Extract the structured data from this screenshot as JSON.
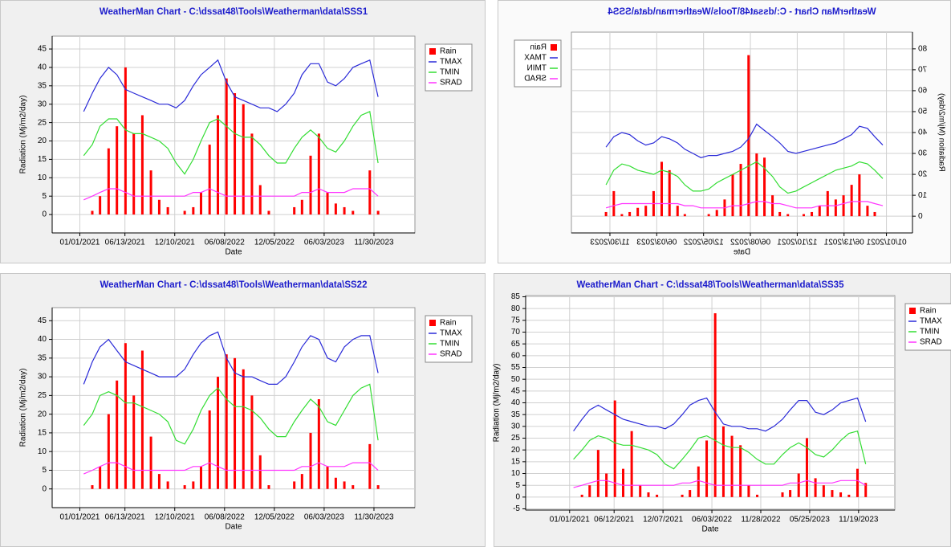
{
  "chart_data": [
    {
      "type": "line",
      "title": "WeatherMan  Chart  -  C:\\dssat48\\Tools\\Weatherman\\data\\SSS1",
      "x_label": "Date",
      "y_label": "Radiation (Mj/m2/day)",
      "xlim": [
        "09/23/2020",
        "04/26/2024"
      ],
      "xticks": [
        "01/01/2021",
        "06/13/2021",
        "12/10/2021",
        "06/08/2022",
        "12/05/2022",
        "06/03/2023",
        "11/30/2023"
      ],
      "ylim": [
        -5,
        48.5
      ],
      "yticks": [
        0,
        5,
        10,
        15,
        20,
        25,
        30,
        35,
        40,
        45
      ],
      "grid": true,
      "legend": "right",
      "x": [
        "01/15/2021",
        "02/15/2021",
        "03/15/2021",
        "04/15/2021",
        "05/15/2021",
        "06/15/2021",
        "07/15/2021",
        "08/15/2021",
        "09/15/2021",
        "10/15/2021",
        "11/15/2021",
        "12/15/2021",
        "01/15/2022",
        "02/15/2022",
        "03/15/2022",
        "04/15/2022",
        "05/15/2022",
        "06/15/2022",
        "07/15/2022",
        "08/15/2022",
        "09/15/2022",
        "10/15/2022",
        "11/15/2022",
        "12/15/2022",
        "01/15/2023",
        "02/15/2023",
        "03/15/2023",
        "04/15/2023",
        "05/15/2023",
        "06/15/2023",
        "07/15/2023",
        "08/15/2023",
        "09/15/2023",
        "10/15/2023",
        "11/15/2023",
        "12/15/2023"
      ],
      "series": [
        {
          "name": "Rain",
          "color": "#ff0000",
          "type": "bar",
          "values": [
            0,
            1,
            5,
            18,
            24,
            40,
            22,
            27,
            12,
            4,
            2,
            0,
            1,
            2,
            6,
            19,
            27,
            37,
            33,
            30,
            22,
            8,
            1,
            0,
            0,
            2,
            4,
            16,
            22,
            6,
            3,
            2,
            1,
            0,
            12,
            1
          ]
        },
        {
          "name": "TMAX",
          "color": "#2a2ad8",
          "type": "line",
          "values": [
            28,
            33,
            37,
            40,
            38,
            34,
            33,
            32,
            31,
            30,
            30,
            29,
            31,
            35,
            38,
            40,
            42,
            36,
            32,
            31,
            30,
            29,
            29,
            28,
            30,
            33,
            38,
            41,
            41,
            36,
            35,
            37,
            40,
            41,
            42,
            32
          ]
        },
        {
          "name": "TMIN",
          "color": "#33dd33",
          "type": "line",
          "values": [
            16,
            19,
            24,
            26,
            26,
            23,
            22,
            22,
            21,
            20,
            18,
            14,
            11,
            15,
            20,
            25,
            26,
            24,
            22,
            21,
            21,
            19,
            16,
            14,
            14,
            18,
            21,
            23,
            21,
            18,
            17,
            20,
            24,
            27,
            28,
            14
          ]
        },
        {
          "name": "SRAD",
          "color": "#ff33ff",
          "type": "line",
          "values": [
            4,
            5,
            6,
            7,
            7,
            6,
            5,
            5,
            5,
            5,
            5,
            5,
            5,
            6,
            6,
            7,
            6,
            5,
            5,
            5,
            5,
            5,
            5,
            5,
            5,
            5,
            6,
            6,
            7,
            6,
            6,
            6,
            7,
            7,
            7,
            5
          ]
        }
      ]
    },
    {
      "type": "line",
      "title": "WeatherMan  Chart  -  C:\\dssat48\\Tools\\Weatherman\\data\\SS22",
      "x_label": "Date",
      "y_label": "Radiation (Mj/m2/day)",
      "xlim": [
        "09/23/2020",
        "04/26/2024"
      ],
      "xticks": [
        "01/01/2021",
        "06/13/2021",
        "12/10/2021",
        "06/08/2022",
        "12/05/2022",
        "06/03/2023",
        "11/30/2023"
      ],
      "ylim": [
        -5,
        48.5
      ],
      "yticks": [
        0,
        5,
        10,
        15,
        20,
        25,
        30,
        35,
        40,
        45
      ],
      "grid": true,
      "legend": "right",
      "x": [
        "01/15/2021",
        "02/15/2021",
        "03/15/2021",
        "04/15/2021",
        "05/15/2021",
        "06/15/2021",
        "07/15/2021",
        "08/15/2021",
        "09/15/2021",
        "10/15/2021",
        "11/15/2021",
        "12/15/2021",
        "01/15/2022",
        "02/15/2022",
        "03/15/2022",
        "04/15/2022",
        "05/15/2022",
        "06/15/2022",
        "07/15/2022",
        "08/15/2022",
        "09/15/2022",
        "10/15/2022",
        "11/15/2022",
        "12/15/2022",
        "01/15/2023",
        "02/15/2023",
        "03/15/2023",
        "04/15/2023",
        "05/15/2023",
        "06/15/2023",
        "07/15/2023",
        "08/15/2023",
        "09/15/2023",
        "10/15/2023",
        "11/15/2023",
        "12/15/2023"
      ],
      "series": [
        {
          "name": "Rain",
          "color": "#ff0000",
          "type": "bar",
          "values": [
            0,
            1,
            6,
            20,
            29,
            39,
            25,
            37,
            14,
            4,
            2,
            0,
            1,
            2,
            6,
            21,
            30,
            36,
            35,
            32,
            25,
            9,
            1,
            0,
            0,
            2,
            4,
            15,
            24,
            6,
            3,
            2,
            1,
            0,
            12,
            1
          ]
        },
        {
          "name": "TMAX",
          "color": "#2a2ad8",
          "type": "line",
          "values": [
            28,
            34,
            38,
            40,
            37,
            34,
            33,
            32,
            31,
            30,
            30,
            30,
            32,
            36,
            39,
            41,
            42,
            35,
            31,
            30,
            30,
            29,
            28,
            28,
            30,
            34,
            38,
            41,
            40,
            35,
            34,
            38,
            40,
            41,
            41,
            31
          ]
        },
        {
          "name": "TMIN",
          "color": "#33dd33",
          "type": "line",
          "values": [
            17,
            20,
            25,
            26,
            25,
            23,
            23,
            22,
            21,
            20,
            18,
            13,
            12,
            16,
            21,
            25,
            27,
            24,
            22,
            22,
            21,
            19,
            16,
            14,
            14,
            18,
            21,
            24,
            22,
            18,
            17,
            21,
            25,
            27,
            28,
            13
          ]
        },
        {
          "name": "SRAD",
          "color": "#ff33ff",
          "type": "line",
          "values": [
            4,
            5,
            6,
            7,
            7,
            6,
            5,
            5,
            5,
            5,
            5,
            5,
            5,
            6,
            6,
            7,
            6,
            5,
            5,
            5,
            5,
            5,
            5,
            5,
            5,
            5,
            6,
            6,
            7,
            6,
            6,
            6,
            7,
            7,
            7,
            5
          ]
        }
      ]
    },
    {
      "type": "line",
      "title": "WeatherMan  Chart  -  C:\\dssat48\\Tools\\Weatherman\\data\\SSS4",
      "x_label": "Date",
      "y_label": "Radiation (Mj/m2/day)",
      "xlim": [
        "09/23/2020",
        "04/26/2024"
      ],
      "xticks": [
        "01/01/2021",
        "06/13/2021",
        "12/10/2021",
        "06/08/2022",
        "12/05/2022",
        "06/03/2023",
        "11/30/2023"
      ],
      "ylim": [
        -8,
        88
      ],
      "yticks": [
        0,
        10,
        20,
        30,
        40,
        50,
        60,
        70,
        80
      ],
      "grid": true,
      "legend": "right",
      "mirrored": true,
      "x": [
        "01/15/2021",
        "02/15/2021",
        "03/15/2021",
        "04/15/2021",
        "05/15/2021",
        "06/15/2021",
        "07/15/2021",
        "08/15/2021",
        "09/15/2021",
        "10/15/2021",
        "11/15/2021",
        "12/15/2021",
        "01/15/2022",
        "02/15/2022",
        "03/15/2022",
        "04/15/2022",
        "05/15/2022",
        "06/15/2022",
        "07/15/2022",
        "08/15/2022",
        "09/15/2022",
        "10/15/2022",
        "11/15/2022",
        "12/15/2022",
        "01/15/2023",
        "02/15/2023",
        "03/15/2023",
        "04/15/2023",
        "05/15/2023",
        "06/15/2023",
        "07/15/2023",
        "08/15/2023",
        "09/15/2023",
        "10/15/2023",
        "11/15/2023",
        "12/15/2023"
      ],
      "series": [
        {
          "name": "Rain",
          "color": "#ff0000",
          "type": "bar",
          "values": [
            0,
            2,
            5,
            20,
            15,
            10,
            8,
            12,
            5,
            2,
            1,
            0,
            1,
            2,
            10,
            28,
            30,
            77,
            25,
            20,
            8,
            3,
            1,
            0,
            0,
            1,
            5,
            22,
            26,
            12,
            5,
            4,
            2,
            1,
            12,
            2
          ]
        },
        {
          "name": "TMAX",
          "color": "#2a2ad8",
          "type": "line",
          "values": [
            34,
            38,
            42,
            43,
            39,
            37,
            35,
            34,
            33,
            32,
            31,
            30,
            31,
            35,
            38,
            41,
            44,
            37,
            33,
            31,
            30,
            29,
            29,
            28,
            30,
            32,
            35,
            37,
            38,
            35,
            34,
            36,
            39,
            40,
            38,
            33
          ]
        },
        {
          "name": "TMIN",
          "color": "#33dd33",
          "type": "line",
          "values": [
            18,
            22,
            25,
            26,
            24,
            23,
            22,
            20,
            18,
            16,
            14,
            12,
            11,
            14,
            19,
            23,
            26,
            24,
            22,
            20,
            18,
            16,
            13,
            12,
            12,
            15,
            19,
            21,
            22,
            20,
            21,
            22,
            24,
            25,
            22,
            15
          ]
        },
        {
          "name": "SRAD",
          "color": "#ff33ff",
          "type": "line",
          "values": [
            5,
            6,
            7,
            7,
            7,
            6,
            5,
            5,
            5,
            4,
            4,
            4,
            5,
            6,
            6,
            7,
            7,
            6,
            5,
            5,
            4,
            4,
            4,
            4,
            5,
            5,
            6,
            6,
            6,
            6,
            6,
            6,
            6,
            6,
            5,
            4
          ]
        }
      ]
    },
    {
      "type": "line",
      "title": "WeatherMan  Chart  -  C:\\dssat48\\Tools\\Weatherman\\data\\SS35",
      "x_label": "Date",
      "y_label": "Radiation (Mj/m2/day)",
      "xlim": [
        "07/25/2020",
        "03/30/2024"
      ],
      "xticks": [
        "01/01/2021",
        "06/12/2021",
        "12/07/2021",
        "06/03/2022",
        "11/28/2022",
        "05/25/2023",
        "11/19/2023"
      ],
      "ylim": [
        -5.5,
        85.5
      ],
      "yticks": [
        -5,
        0,
        5,
        10,
        15,
        20,
        25,
        30,
        35,
        40,
        45,
        50,
        55,
        60,
        65,
        70,
        75,
        80,
        85
      ],
      "grid": true,
      "legend": "right",
      "x": [
        "01/15/2021",
        "02/15/2021",
        "03/15/2021",
        "04/15/2021",
        "05/15/2021",
        "06/15/2021",
        "07/15/2021",
        "08/15/2021",
        "09/15/2021",
        "10/15/2021",
        "11/15/2021",
        "12/15/2021",
        "01/15/2022",
        "02/15/2022",
        "03/15/2022",
        "04/15/2022",
        "05/15/2022",
        "06/15/2022",
        "07/15/2022",
        "08/15/2022",
        "09/15/2022",
        "10/15/2022",
        "11/15/2022",
        "12/15/2022",
        "01/15/2023",
        "02/15/2023",
        "03/15/2023",
        "04/15/2023",
        "05/15/2023",
        "06/15/2023",
        "07/15/2023",
        "08/15/2023",
        "09/15/2023",
        "10/15/2023",
        "11/15/2023",
        "12/15/2023"
      ],
      "series": [
        {
          "name": "Rain",
          "color": "#ff0000",
          "type": "bar",
          "values": [
            0,
            1,
            5,
            20,
            10,
            41,
            12,
            28,
            5,
            2,
            1,
            0,
            0,
            1,
            3,
            13,
            24,
            78,
            30,
            26,
            22,
            5,
            1,
            0,
            0,
            2,
            3,
            10,
            25,
            8,
            5,
            3,
            2,
            1,
            12,
            6
          ]
        },
        {
          "name": "TMAX",
          "color": "#2a2ad8",
          "type": "line",
          "values": [
            28,
            33,
            37,
            39,
            37,
            35,
            33,
            32,
            31,
            30,
            30,
            29,
            31,
            35,
            39,
            41,
            42,
            36,
            31,
            30,
            30,
            29,
            29,
            28,
            30,
            33,
            37,
            41,
            41,
            36,
            35,
            37,
            40,
            41,
            42,
            32
          ]
        },
        {
          "name": "TMIN",
          "color": "#33dd33",
          "type": "line",
          "values": [
            16,
            20,
            24,
            26,
            25,
            23,
            22,
            22,
            21,
            20,
            18,
            14,
            12,
            16,
            20,
            25,
            26,
            24,
            22,
            21,
            21,
            19,
            16,
            14,
            14,
            18,
            21,
            23,
            21,
            18,
            17,
            20,
            24,
            27,
            28,
            14
          ]
        },
        {
          "name": "SRAD",
          "color": "#ff33ff",
          "type": "line",
          "values": [
            4,
            5,
            6,
            7,
            7,
            6,
            5,
            5,
            5,
            5,
            5,
            5,
            5,
            6,
            6,
            7,
            6,
            5,
            5,
            5,
            5,
            5,
            5,
            5,
            5,
            5,
            6,
            6,
            7,
            6,
            6,
            6,
            7,
            7,
            7,
            5
          ]
        }
      ]
    }
  ]
}
